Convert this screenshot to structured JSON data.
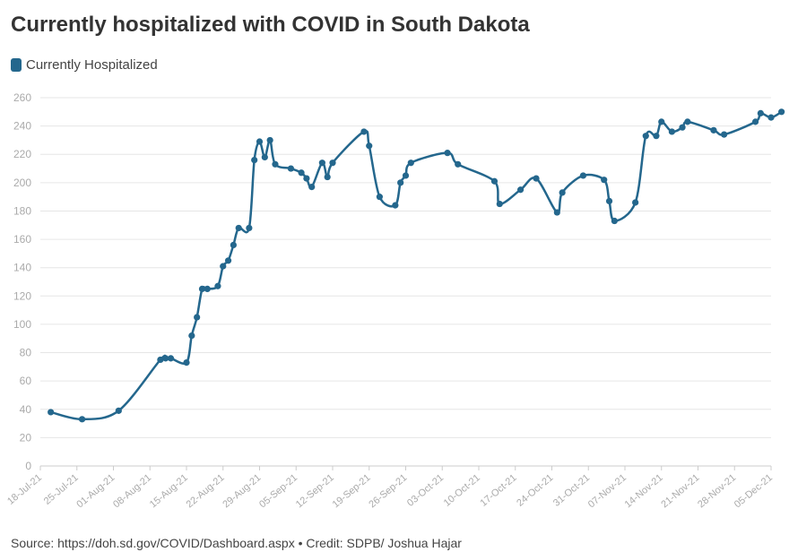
{
  "title": "Currently hospitalized with COVID in South Dakota",
  "legend_label": "Currently Hospitalized",
  "footer": "Source: https://doh.sd.gov/COVID/Dashboard.aspx • Credit: SDPB/ Joshua Hajar",
  "colors": {
    "series": "#24678d",
    "grid": "#e6e6e6",
    "tick": "#aaaaaa",
    "axis": "#cccccc"
  },
  "chart_data": {
    "type": "line",
    "title": "Currently hospitalized with COVID in South Dakota",
    "xlabel": "",
    "ylabel": "",
    "x_ticks": [
      "18-Jul-21",
      "25-Jul-21",
      "01-Aug-21",
      "08-Aug-21",
      "15-Aug-21",
      "22-Aug-21",
      "29-Aug-21",
      "05-Sep-21",
      "12-Sep-21",
      "19-Sep-21",
      "26-Sep-21",
      "03-Oct-21",
      "10-Oct-21",
      "17-Oct-21",
      "24-Oct-21",
      "31-Oct-21",
      "07-Nov-21",
      "14-Nov-21",
      "21-Nov-21",
      "28-Nov-21",
      "05-Dec-21"
    ],
    "y_ticks": [
      0,
      20,
      40,
      60,
      80,
      100,
      120,
      140,
      160,
      180,
      200,
      220,
      240,
      260
    ],
    "ylim": [
      0,
      260
    ],
    "xlim": [
      "18-Jul-21",
      "05-Dec-21"
    ],
    "grid": true,
    "legend_position": "top-left",
    "series": [
      {
        "name": "Currently Hospitalized",
        "points": [
          [
            "20-Jul-21",
            38
          ],
          [
            "26-Jul-21",
            33
          ],
          [
            "02-Aug-21",
            39
          ],
          [
            "10-Aug-21",
            75
          ],
          [
            "11-Aug-21",
            76
          ],
          [
            "12-Aug-21",
            76
          ],
          [
            "15-Aug-21",
            73
          ],
          [
            "16-Aug-21",
            92
          ],
          [
            "17-Aug-21",
            105
          ],
          [
            "18-Aug-21",
            125
          ],
          [
            "19-Aug-21",
            125
          ],
          [
            "21-Aug-21",
            127
          ],
          [
            "22-Aug-21",
            141
          ],
          [
            "23-Aug-21",
            145
          ],
          [
            "24-Aug-21",
            156
          ],
          [
            "25-Aug-21",
            168
          ],
          [
            "27-Aug-21",
            168
          ],
          [
            "28-Aug-21",
            216
          ],
          [
            "29-Aug-21",
            229
          ],
          [
            "30-Aug-21",
            218
          ],
          [
            "31-Aug-21",
            230
          ],
          [
            "01-Sep-21",
            213
          ],
          [
            "04-Sep-21",
            210
          ],
          [
            "06-Sep-21",
            207
          ],
          [
            "07-Sep-21",
            203
          ],
          [
            "08-Sep-21",
            197
          ],
          [
            "10-Sep-21",
            214
          ],
          [
            "11-Sep-21",
            204
          ],
          [
            "12-Sep-21",
            214
          ],
          [
            "18-Sep-21",
            236
          ],
          [
            "19-Sep-21",
            226
          ],
          [
            "21-Sep-21",
            190
          ],
          [
            "24-Sep-21",
            184
          ],
          [
            "25-Sep-21",
            200
          ],
          [
            "26-Sep-21",
            205
          ],
          [
            "27-Sep-21",
            214
          ],
          [
            "04-Oct-21",
            221
          ],
          [
            "06-Oct-21",
            213
          ],
          [
            "13-Oct-21",
            201
          ],
          [
            "14-Oct-21",
            185
          ],
          [
            "18-Oct-21",
            195
          ],
          [
            "21-Oct-21",
            203
          ],
          [
            "25-Oct-21",
            179
          ],
          [
            "26-Oct-21",
            193
          ],
          [
            "30-Oct-21",
            205
          ],
          [
            "03-Nov-21",
            202
          ],
          [
            "04-Nov-21",
            187
          ],
          [
            "05-Nov-21",
            173
          ],
          [
            "09-Nov-21",
            186
          ],
          [
            "11-Nov-21",
            233
          ],
          [
            "13-Nov-21",
            233
          ],
          [
            "14-Nov-21",
            243
          ],
          [
            "16-Nov-21",
            236
          ],
          [
            "18-Nov-21",
            239
          ],
          [
            "19-Nov-21",
            243
          ],
          [
            "24-Nov-21",
            237
          ],
          [
            "26-Nov-21",
            234
          ],
          [
            "02-Dec-21",
            243
          ],
          [
            "03-Dec-21",
            249
          ],
          [
            "05-Dec-21",
            246
          ],
          [
            "07-Dec-21",
            250
          ]
        ]
      }
    ]
  }
}
